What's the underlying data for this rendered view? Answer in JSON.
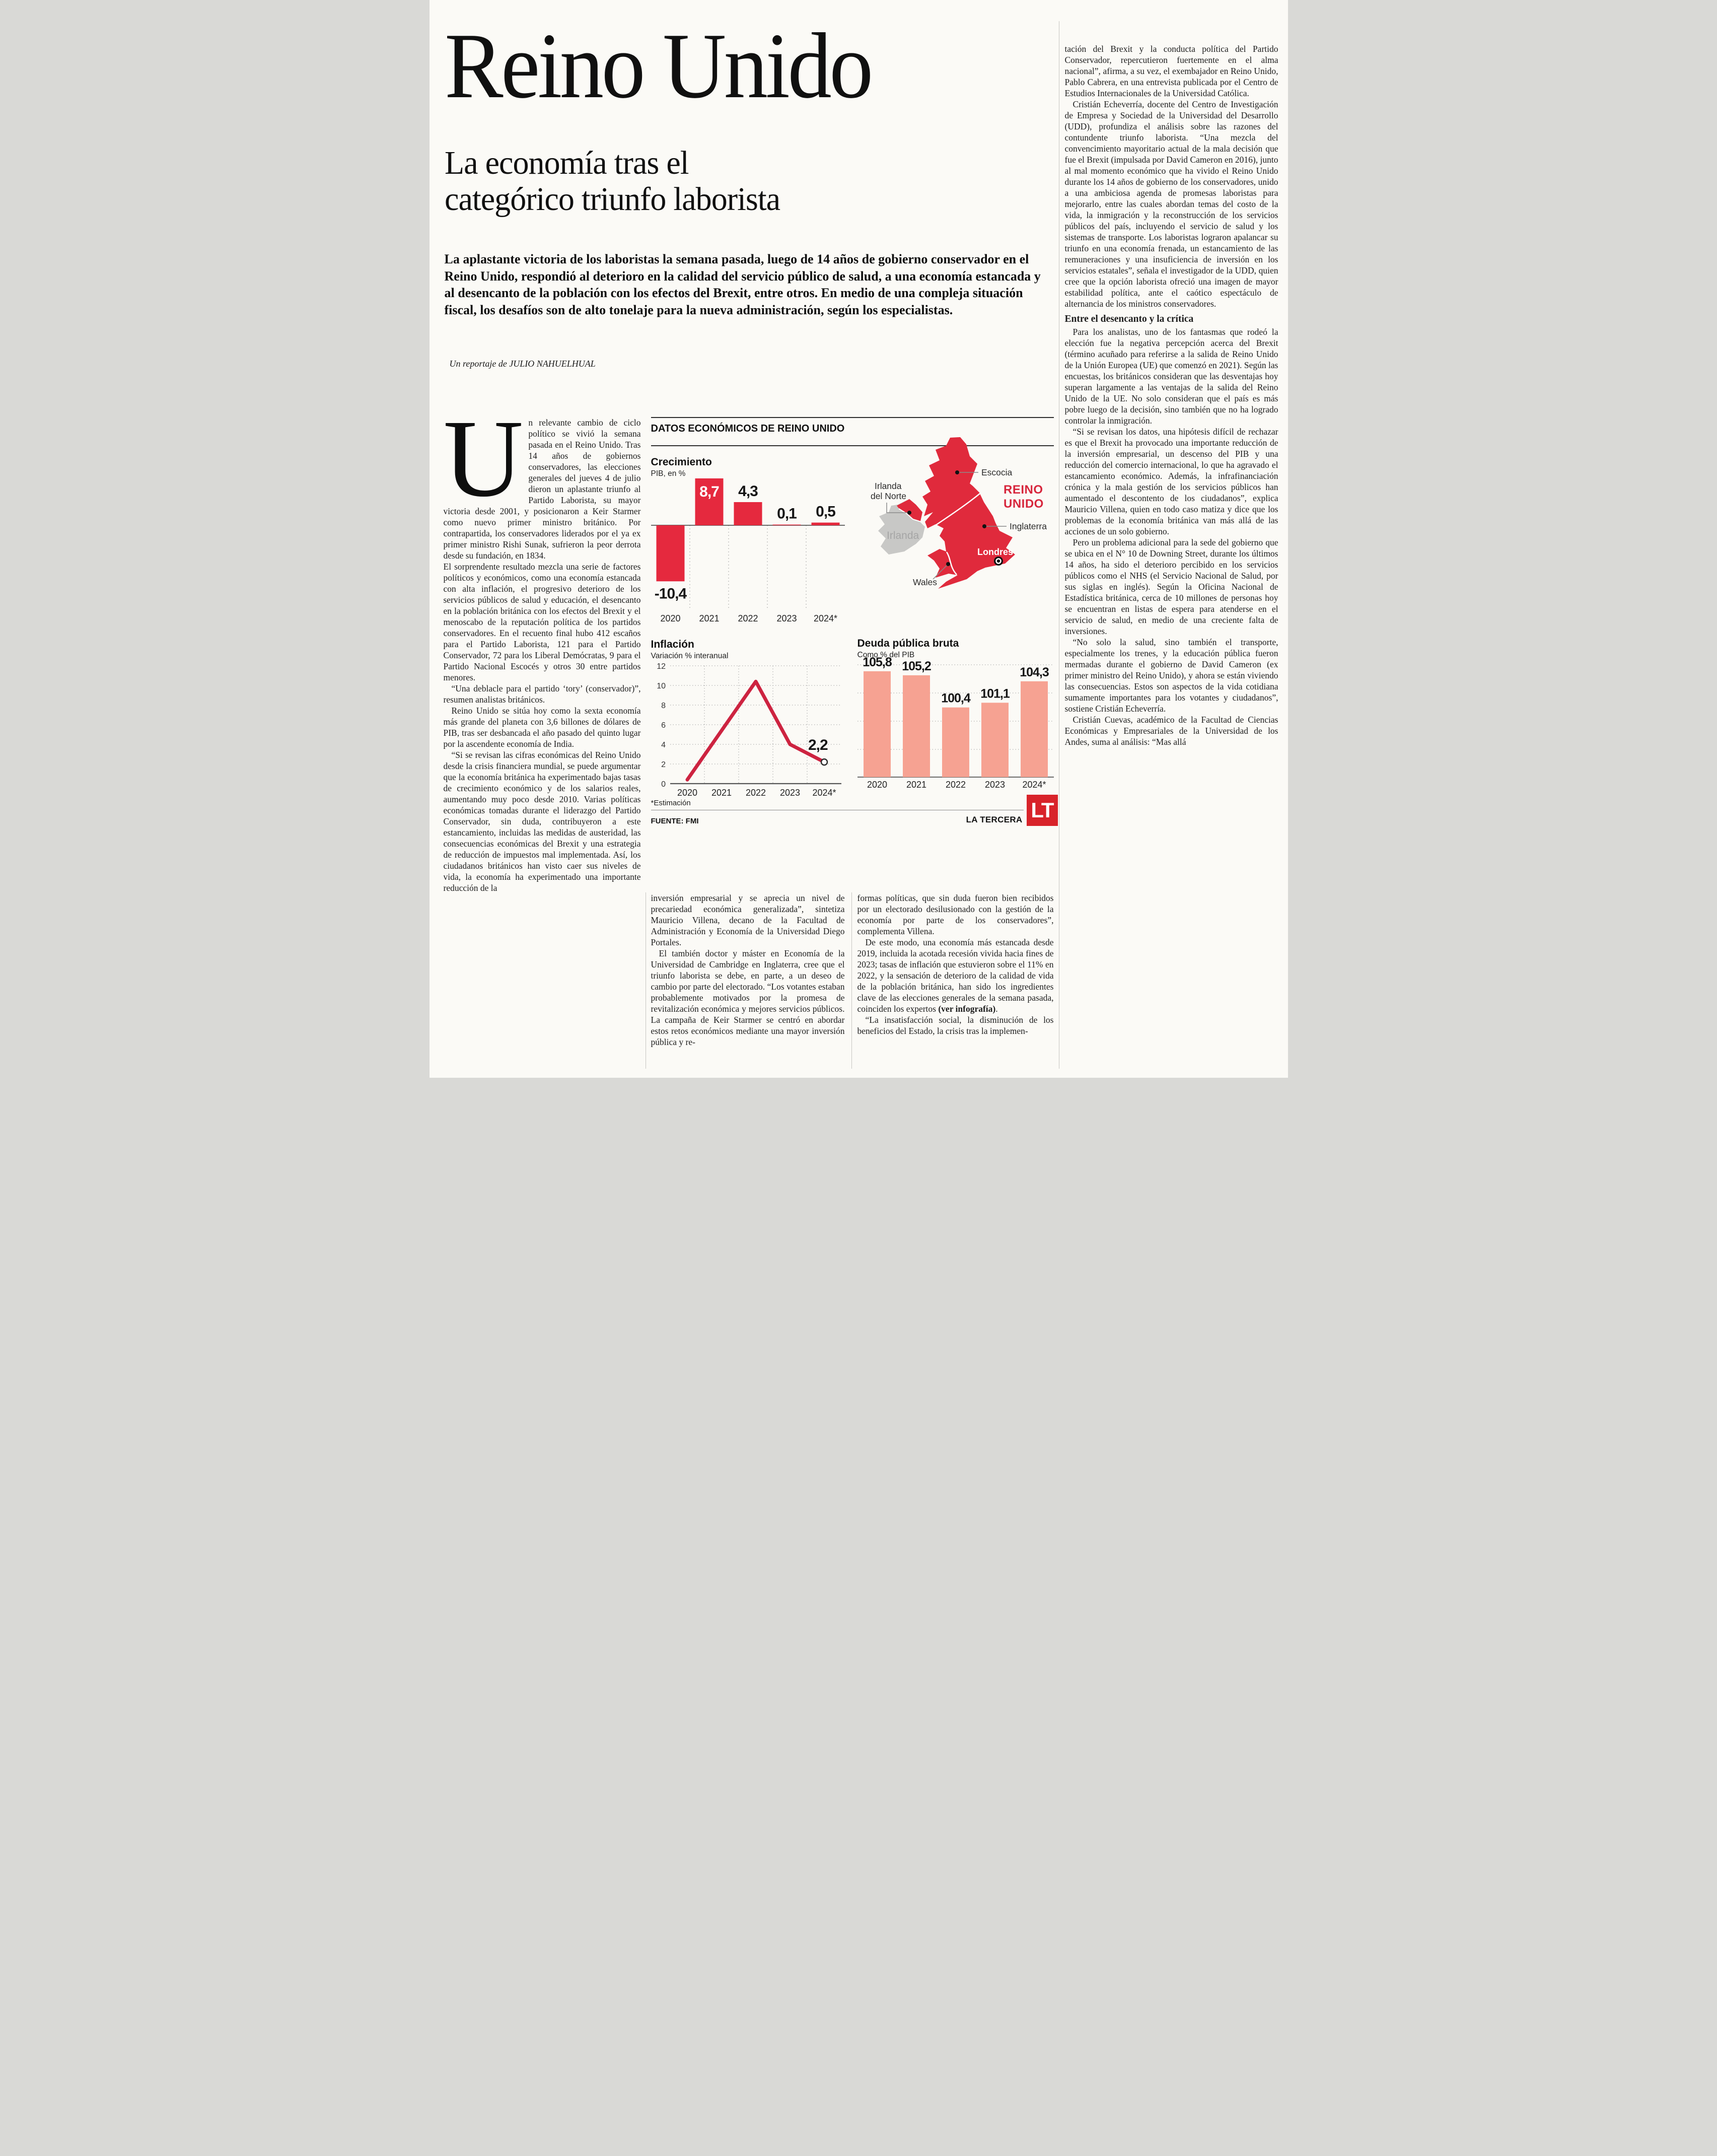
{
  "header": {
    "title": "Reino Unido",
    "subtitle_lines": [
      "La economía tras el",
      "categórico triunfo laborista"
    ],
    "lead": "La aplastante victoria de los laboristas la semana pasada, luego de 14 años de gobierno conservador en el Reino Unido, respondió al deterioro en la calidad del servicio público de salud, a una economía estancada y al desencanto de la población con los efectos del Brexit, entre otros. En medio de una compleja situación fiscal, los desafíos son de alto tonelaje para la nueva administración, según los especialistas.",
    "byline_prefix": "Un reportaje de",
    "byline_author": "JULIO NAHUELHUAL"
  },
  "columns": {
    "left": {
      "drop_cap": "U",
      "first_paragraph": "n relevante cambio de ciclo político se vivió la semana pasada en el Reino Unido. Tras 14 años de gobiernos conservadores, las elecciones generales del jueves 4 de julio dieron un aplastante triunfo al Partido Laborista, su mayor victoria desde 2001, y posicionaron a Keir Starmer como nuevo primer ministro británico. Por contrapartida, los conservadores liderados por el ya ex primer ministro Rishi Sunak, sufrieron la peor derrota desde su fundación, en 1834.",
      "paragraphs": [
        "El sorprendente resultado mezcla una serie de factores políticos y económicos, como una economía estancada con alta inflación, el progresivo deterioro de los servicios públicos de salud y educación, el desencanto en la población británica con los efectos del Brexit y el menoscabo de la reputación política de los partidos conservadores. En el recuento final hubo 412 escaños para el Partido Laborista, 121 para el Partido Conservador, 72 para los Liberal Demócratas, 9 para el Partido Nacional Escocés y otros 30 entre partidos menores.",
        "“Una deblacle para el partido ‘tory’ (conservador)”, resumen analistas británicos.",
        "Reino Unido se sitúa hoy como la sexta economía más grande del planeta con 3,6 billones de dólares de PIB, tras ser desbancada el año pasado del quinto lugar por la ascendente economía de India.",
        "“Si se revisan las cifras económicas del Reino Unido desde la crisis financiera mundial, se puede argumentar que la economía británica ha experimentado bajas tasas de crecimiento económico y de los salarios reales, aumentando muy poco desde 2010. Varias políticas económicas tomadas durante el liderazgo del Partido Conservador, sin duda, contribuyeron a este estancamiento, incluidas las medidas de austeridad, las consecuencias económicas del Brexit y una estrategia de reducción de impuestos mal implementada. Así, los ciudadanos británicos han visto caer sus niveles de vida, la economía ha experimentado una importante reducción de la"
      ]
    },
    "mid_first": [
      "inversión empresarial y se aprecia un nivel de precariedad económica generalizada”, sintetiza Mauricio Villena, decano de la Facultad de Administración y Economía de la Universidad Diego Portales.",
      "El también doctor y máster en Economía de la Universidad de Cambridge en Inglaterra, cree que el triunfo laborista se debe, en parte, a un deseo de cambio por parte del electorado. “Los votantes estaban probablemente motivados por la promesa de revitalización económica y mejores servicios públicos. La campaña de Keir Starmer se centró en abordar estos retos económicos mediante una mayor inversión pública y re-"
    ],
    "mid_second": {
      "p1": "formas políticas, que sin duda fueron bien recibidos por un electorado desilusionado con la gestión de la economía por parte de los conservadores”, complementa Villena.",
      "p2_before": "De este modo, una economía más estancada desde 2019, incluida la acotada recesión vivida hacia fines de 2023; tasas de inflación que estuvieron sobre el 11% en 2022, y la sensación de deterioro de la calidad de vida de la población británica, han sido los ingredientes clave de las elecciones generales de la semana pasada, coinciden los expertos ",
      "p2_bold": "(ver infografía)",
      "p2_after": ".",
      "p3": "“La insatisfacción social, la disminución de los beneficios del Estado, la crisis tras la implemen-"
    },
    "right": {
      "paragraphs_top": [
        "tación del Brexit y la conducta política del Partido Conservador, repercutieron fuertemente en el alma nacional”, afirma, a su vez, el exembajador en Reino Unido, Pablo Cabrera, en una entrevista publicada por el Centro de Estudios Internacionales de la Universidad Católica.",
        "Cristián Echeverría, docente del Centro de Investigación de Empresa y Sociedad de la Universidad del Desarrollo (UDD), profundiza el análisis sobre las razones del contundente triunfo laborista. “Una mezcla del convencimiento mayoritario actual de la mala decisión que fue el Brexit (impulsada por David Cameron en 2016), junto al mal momento económico que ha vivido el Reino Unido durante los 14 años de gobierno de los conservadores, unido a una ambiciosa agenda de promesas laboristas para mejorarlo, entre las cuales abordan temas del costo de la vida, la inmigración y la reconstrucción de los servicios públicos del país, incluyendo el servicio de salud y los sistemas de transporte. Los laboristas lograron apalancar su triunfo en una economía frenada, un estancamiento de las remuneraciones y una insuficiencia de inversión en los servicios estatales”, señala el investigador de la UDD, quien cree que la opción laborista ofreció una imagen de mayor estabilidad política, ante el caótico espectáculo de alternancia de los ministros conservadores."
      ],
      "subhead": "Entre el desencanto y la crítica",
      "paragraphs_bottom": [
        "Para los analistas, uno de los fantasmas que rodeó la elección fue la negativa percepción acerca del Brexit (término acuñado para referirse a la salida de Reino Unido de la Unión Europea (UE) que comenzó en 2021). Según las encuestas, los británicos consideran que las desventajas hoy superan largamente a las ventajas de la salida del Reino Unido de la UE. No solo consideran que el país es más pobre luego de la decisión, sino también que no ha logrado controlar la inmigración.",
        "“Si se revisan los datos, una hipótesis difícil de rechazar es que el Brexit ha provocado una importante reducción de la inversión empresarial, un descenso del PIB y una reducción del comercio internacional, lo que ha agravado el estancamiento económico. Además, la infrafinanciación crónica y la mala gestión de los servicios públicos han aumentado el descontento de los ciudadanos”, explica Mauricio Villena, quien en todo caso matiza y dice que los problemas de la economía británica van más allá de las acciones de un solo gobierno.",
        "Pero un problema adicional para la sede del gobierno que se ubica en el N° 10 de Downing Street, durante los últimos 14 años, ha sido el deterioro percibido en los servicios públicos como el NHS (el Servicio Nacional de Salud, por sus siglas en inglés). Según la Oficina Nacional de Estadística británica, cerca de 10 millones de personas hoy se encuentran en listas de espera para atenderse en el servicio de salud, en medio de una creciente falta de inversiones.",
        "“No solo la salud, sino también el transporte, especialmente los trenes, y la educación pública fueron mermadas durante el gobierno de David Cameron (ex primer ministro del Reino Unido), y ahora se están viviendo las consecuencias. Estos son aspectos de la vida cotidiana sumamente importantes para los votantes y ciudadanos”, sostiene Cristián Echeverría.",
        "Cristián Cuevas, académico de la Facultad de Ciencias Económicas y Empresariales de la Universidad de los Andes, suma al análisis: “Mas allá"
      ]
    }
  },
  "infographic": {
    "title": "DATOS ECONÓMICOS DE REINO UNIDO",
    "estimate_note": "*Estimación",
    "source": "FUENTE: FMI",
    "credit": "LA TERCERA",
    "logo_text": "LT",
    "map": {
      "colors": {
        "uk": "#e02a3c",
        "ireland": "#c8c8c6",
        "country_label": "#d7263c"
      },
      "country_label_lines": [
        "REINO",
        "UNIDO"
      ],
      "labels": {
        "scotland": "Escocia",
        "northern_ireland_lines": [
          "Irlanda",
          "del Norte"
        ],
        "ireland": "Irlanda",
        "england": "Inglaterra",
        "london": "Londres",
        "wales": "Wales"
      }
    }
  },
  "chart_data": [
    {
      "type": "bar",
      "title": "Crecimiento",
      "subtitle": "PIB, en %",
      "categories": [
        "2020",
        "2021",
        "2022",
        "2023",
        "2024*"
      ],
      "values": [
        -10.4,
        8.7,
        4.3,
        0.1,
        0.5
      ],
      "value_labels": [
        "-10,4",
        "8,7",
        "4,3",
        "0,1",
        "0,5"
      ],
      "label_positions": [
        "below",
        "inside",
        "above",
        "above",
        "above"
      ],
      "ylim": [
        -12,
        9
      ],
      "bar_color": "#e5293e",
      "grid": "vertical dotted separators below zero axis",
      "legend": "none"
    },
    {
      "type": "line",
      "title": "Inflación",
      "subtitle": "Variación % interanual",
      "x": [
        "2020",
        "2021",
        "2022",
        "2023",
        "2024*"
      ],
      "values": [
        0.4,
        5.4,
        10.4,
        4.0,
        2.2
      ],
      "end_label": "2,2",
      "yticks": [
        0,
        2,
        4,
        6,
        8,
        10,
        12
      ],
      "ylim": [
        0,
        12
      ],
      "line_color": "#cd2340",
      "grid": "dotted horizontal at ticks and dotted vertical between years",
      "legend": "none"
    },
    {
      "type": "bar",
      "title": "Deuda pública bruta",
      "subtitle": "Como % del PIB",
      "categories": [
        "2020",
        "2021",
        "2022",
        "2023",
        "2024*"
      ],
      "values": [
        105.8,
        105.2,
        100.4,
        101.1,
        104.3
      ],
      "value_labels": [
        "105,8",
        "105,2",
        "100,4",
        "101,1",
        "104,3"
      ],
      "label_positions": [
        "above",
        "above",
        "above",
        "above",
        "above"
      ],
      "ylim": [
        90,
        108
      ],
      "bar_color": "#f6a292",
      "grid": "dotted horizontal gridlines, no y labels",
      "legend": "none"
    }
  ]
}
